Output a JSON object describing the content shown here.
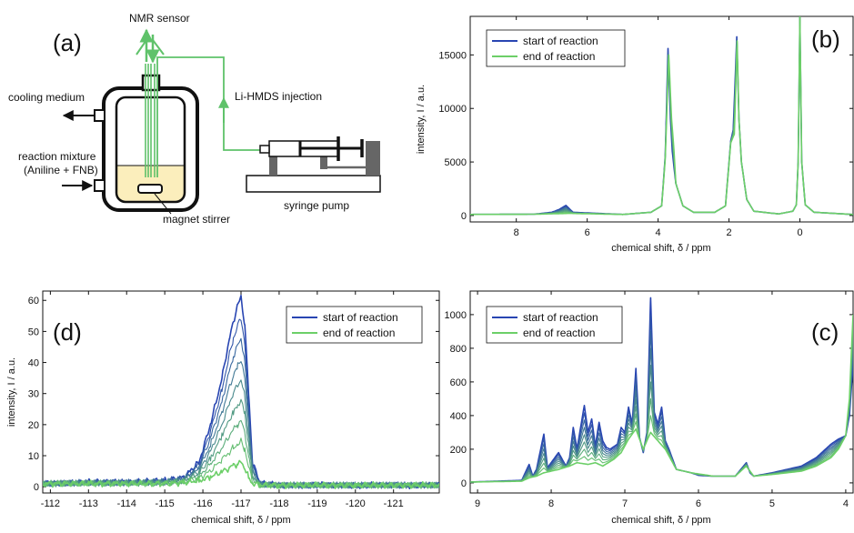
{
  "panel_a": {
    "letter": "(a)",
    "labels": {
      "sensor": "NMR sensor",
      "cooling": "cooling medium",
      "mixture_line1": "reaction mixture",
      "mixture_line2": "(Aniline + FNB)",
      "stirrer": "magnet stirrer",
      "injection": "Li-HMDS injection",
      "pump": "syringe pump"
    },
    "colors": {
      "line": "#5fc26a",
      "liquid": "#fbeebc",
      "vessel": "#111111"
    }
  },
  "chart_data": [
    {
      "id": "b",
      "letter": "(b)",
      "type": "line",
      "xlabel": "chemical shift, δ / ppm",
      "ylabel": "intensity, I / a.u.",
      "xlim": [
        9.3,
        -1.5
      ],
      "ylim": [
        -600,
        18600
      ],
      "xticks": [
        8,
        6,
        4,
        2,
        0
      ],
      "yticks": [
        0,
        5000,
        10000,
        15000
      ],
      "legend_position": "top-left",
      "series": [
        {
          "name": "start of reaction",
          "color": "#2845b2",
          "x": [
            9.3,
            7.5,
            7.0,
            6.8,
            6.6,
            6.4,
            5.0,
            4.2,
            3.9,
            3.8,
            3.72,
            3.65,
            3.6,
            3.5,
            3.3,
            3.0,
            2.4,
            2.1,
            1.95,
            1.88,
            1.78,
            1.72,
            1.65,
            1.5,
            1.3,
            0.6,
            0.2,
            0.1,
            0.05,
            0.0,
            -0.05,
            -0.15,
            -0.4,
            -1.5
          ],
          "y": [
            100,
            120,
            300,
            550,
            950,
            300,
            100,
            300,
            900,
            5500,
            15600,
            9000,
            6000,
            3000,
            900,
            300,
            300,
            900,
            7000,
            8000,
            16700,
            9000,
            5000,
            1500,
            400,
            150,
            400,
            1000,
            5000,
            18500,
            5000,
            1000,
            300,
            100
          ]
        },
        {
          "name": "end of reaction",
          "color": "#6ccf68",
          "x": [
            9.3,
            7.5,
            6.5,
            5.0,
            4.2,
            3.9,
            3.8,
            3.7,
            3.62,
            3.55,
            3.5,
            3.3,
            3.0,
            2.4,
            2.1,
            1.95,
            1.85,
            1.77,
            1.72,
            1.65,
            1.5,
            1.3,
            0.6,
            0.2,
            0.1,
            0.05,
            0.0,
            -0.05,
            -0.15,
            -0.4,
            -1.5
          ],
          "y": [
            100,
            120,
            200,
            100,
            300,
            900,
            5200,
            15000,
            9000,
            6000,
            3000,
            900,
            300,
            300,
            900,
            6800,
            7600,
            16300,
            9000,
            5000,
            1500,
            400,
            150,
            400,
            1000,
            5000,
            18600,
            5000,
            1000,
            300,
            100
          ]
        }
      ]
    },
    {
      "id": "d",
      "letter": "(d)",
      "type": "line",
      "xlabel": "chemical shift, δ / ppm",
      "ylabel": "intensity, I / a.u.",
      "xlim": [
        -111.8,
        -122.2
      ],
      "ylim": [
        -2,
        63
      ],
      "xticks": [
        -112,
        -113,
        -114,
        -115,
        -116,
        -117,
        -118,
        -119,
        -120,
        -121
      ],
      "yticks": [
        0,
        10,
        20,
        30,
        40,
        50,
        60
      ],
      "legend_position": "top-right",
      "series": [
        {
          "name": "start of reaction",
          "color": "#2845b2",
          "x": [
            -111.8,
            -113.0,
            -114.0,
            -115.0,
            -115.5,
            -115.9,
            -116.2,
            -116.5,
            -116.7,
            -116.8,
            -116.9,
            -117.0,
            -117.1,
            -117.2,
            -117.3,
            -117.5,
            -118.0,
            -119.0,
            -120.0,
            -122.2
          ],
          "y": [
            1,
            1.5,
            1.5,
            2,
            3,
            8,
            20,
            35,
            48,
            53,
            58,
            61,
            52,
            30,
            8,
            1,
            0.5,
            0.5,
            0.5,
            0.5
          ]
        },
        {
          "name": "end of reaction",
          "color": "#6ccf68",
          "x": [
            -111.8,
            -113.0,
            -114.0,
            -115.0,
            -115.5,
            -115.9,
            -116.2,
            -116.5,
            -116.7,
            -116.8,
            -116.9,
            -117.0,
            -117.1,
            -117.2,
            -117.3,
            -117.5,
            -118.0,
            -119.0,
            -120.0,
            -122.2
          ],
          "y": [
            1,
            1,
            1,
            1,
            1.3,
            2,
            3,
            5,
            6,
            7,
            7,
            8,
            6,
            3,
            1,
            0.5,
            0.5,
            0.5,
            0.5,
            0.5
          ]
        }
      ]
    },
    {
      "id": "c",
      "letter": "(c)",
      "type": "line",
      "xlabel": "chemical shift, δ / ppm",
      "ylabel": "",
      "xlim": [
        9.1,
        3.9
      ],
      "ylim": [
        -60,
        1140
      ],
      "xticks": [
        9,
        8,
        7,
        6,
        5,
        4
      ],
      "yticks": [
        0,
        200,
        400,
        600,
        800,
        1000
      ],
      "legend_position": "top-left",
      "series": [
        {
          "name": "start of reaction",
          "color": "#2845b2",
          "x": [
            9.1,
            8.4,
            8.3,
            8.25,
            8.2,
            8.1,
            8.05,
            7.95,
            7.9,
            7.8,
            7.75,
            7.7,
            7.65,
            7.55,
            7.5,
            7.45,
            7.4,
            7.35,
            7.3,
            7.25,
            7.2,
            7.1,
            7.05,
            7.0,
            6.95,
            6.9,
            6.85,
            6.8,
            6.75,
            6.7,
            6.65,
            6.6,
            6.55,
            6.5,
            6.45,
            6.4,
            6.3,
            6.1,
            6.0,
            5.8,
            5.5,
            5.35,
            5.3,
            5.25,
            5.0,
            4.8,
            4.6,
            4.4,
            4.2,
            4.1,
            4.0,
            3.95,
            3.9
          ],
          "y": [
            5,
            15,
            110,
            40,
            80,
            290,
            90,
            150,
            180,
            100,
            150,
            330,
            200,
            460,
            300,
            380,
            220,
            360,
            250,
            210,
            200,
            230,
            330,
            300,
            450,
            350,
            680,
            270,
            180,
            300,
            1100,
            420,
            350,
            450,
            250,
            200,
            80,
            60,
            45,
            40,
            40,
            120,
            60,
            40,
            60,
            80,
            100,
            150,
            230,
            260,
            280,
            400,
            700
          ]
        },
        {
          "name": "end of reaction",
          "color": "#6ccf68",
          "x": [
            9.1,
            8.4,
            8.3,
            8.2,
            8.1,
            7.9,
            7.75,
            7.65,
            7.5,
            7.4,
            7.3,
            7.15,
            7.05,
            6.95,
            6.85,
            6.75,
            6.65,
            6.55,
            6.45,
            6.3,
            6.1,
            5.8,
            5.5,
            5.35,
            5.25,
            5.0,
            4.6,
            4.4,
            4.2,
            4.1,
            4.0,
            3.95,
            3.9
          ],
          "y": [
            5,
            10,
            30,
            40,
            60,
            80,
            100,
            120,
            110,
            120,
            100,
            140,
            180,
            260,
            320,
            200,
            300,
            250,
            200,
            80,
            60,
            40,
            40,
            100,
            40,
            50,
            70,
            100,
            150,
            200,
            280,
            500,
            1000
          ]
        }
      ]
    }
  ]
}
